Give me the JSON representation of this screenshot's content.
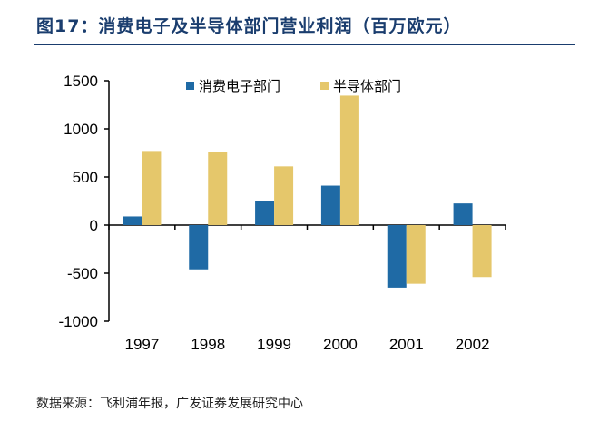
{
  "title": "图17：消费电子及半导体部门营业利润（百万欧元）",
  "source": "数据来源：飞利浦年报，广发证券发展研究中心",
  "chart_data": {
    "type": "bar",
    "title": "图17：消费电子及半导体部门营业利润（百万欧元）",
    "categories": [
      "1997",
      "1998",
      "1999",
      "2000",
      "2001",
      "2002"
    ],
    "series": [
      {
        "name": "消费电子部门",
        "color": "#1f6aa5",
        "values": [
          90,
          -460,
          250,
          410,
          -650,
          225
        ]
      },
      {
        "name": "半导体部门",
        "color": "#e5c76b",
        "values": [
          770,
          760,
          610,
          1345,
          -610,
          -540
        ]
      }
    ],
    "ylim": [
      -1000,
      1500
    ],
    "yticks": [
      1500,
      1000,
      500,
      0,
      -500,
      -1000
    ],
    "grid": false,
    "legend": "top"
  }
}
